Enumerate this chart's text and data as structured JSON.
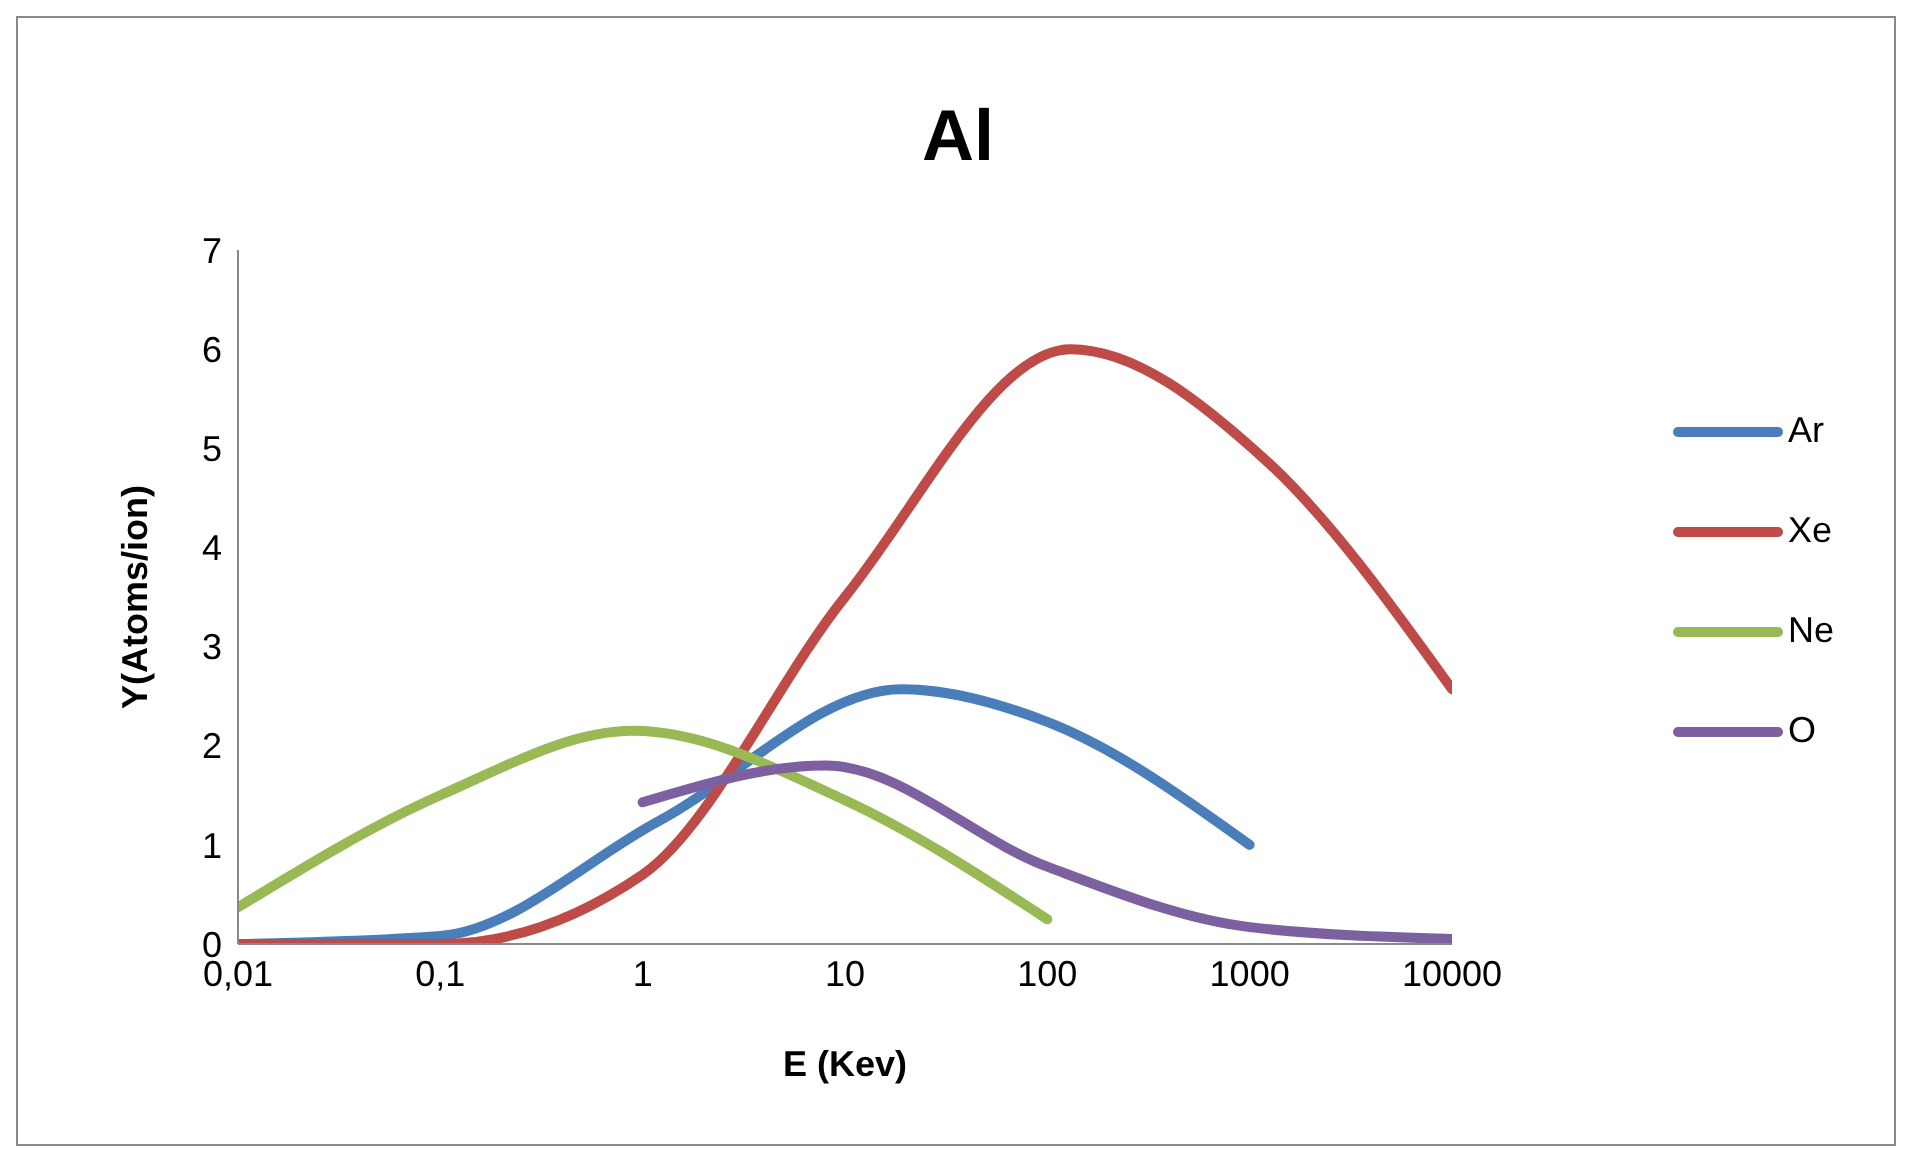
{
  "chart_data": {
    "type": "line",
    "title": "Al",
    "xlabel": "E (Kev)",
    "ylabel": "Y(Atoms/ion)",
    "log": "x",
    "grid": false,
    "legend": "right",
    "marker": "none",
    "line_style": "solid",
    "xlim": [
      0.01,
      10000
    ],
    "xticks": [
      {
        "value": 0.01,
        "label": "0,01"
      },
      {
        "value": 0.1,
        "label": "0,1"
      },
      1,
      10,
      100,
      1000,
      10000
    ],
    "ylim": [
      0,
      7
    ],
    "yticks": [
      0,
      1,
      2,
      3,
      4,
      5,
      6,
      7
    ],
    "series": [
      {
        "name": "Ar",
        "color": "#4a7ebb",
        "x": [
          0.01,
          0.1,
          1.2,
          19,
          100,
          1000
        ],
        "values": [
          0,
          0.08,
          1.24,
          2.57,
          2.24,
          1.0
        ]
      },
      {
        "name": "Xe",
        "color": "#be4b48",
        "x": [
          0.01,
          0.1,
          1,
          10,
          130,
          1200,
          10000
        ],
        "values": [
          0,
          0,
          0.7,
          3.5,
          6.0,
          4.88,
          2.57
        ]
      },
      {
        "name": "Ne",
        "color": "#98b954",
        "x": [
          0.01,
          0.1,
          0.9,
          10,
          100
        ],
        "values": [
          0.37,
          1.5,
          2.15,
          1.45,
          0.25
        ]
      },
      {
        "name": "O",
        "color": "#7d60a0",
        "x": [
          1,
          8,
          100,
          1000,
          10000
        ],
        "values": [
          1.43,
          1.8,
          0.78,
          0.17,
          0.05
        ]
      }
    ]
  }
}
